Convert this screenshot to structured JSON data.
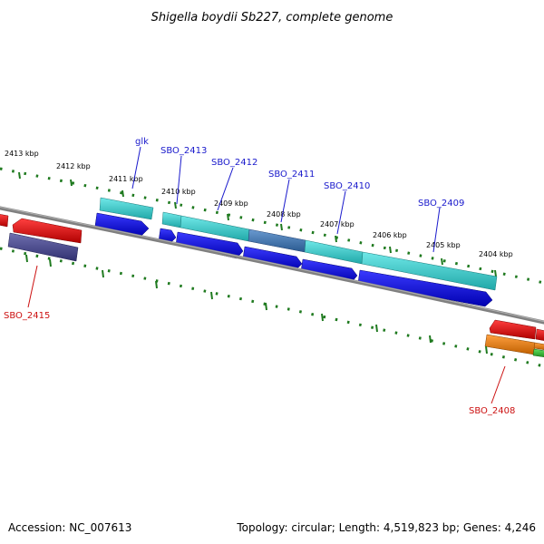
{
  "title": "Shigella boydii Sb227, complete genome",
  "footer": {
    "accession": "Accession: NC_007613",
    "summary": "Topology: circular; Length: 4,519,823 bp; Genes: 4,246"
  },
  "kbp_labels": [
    "2413 kbp",
    "2412 kbp",
    "2411 kbp",
    "2410 kbp",
    "2409 kbp",
    "2408 kbp",
    "2407 kbp",
    "2406 kbp",
    "2405 kbp",
    "2404 kbp"
  ],
  "gene_labels": [
    {
      "text": "glk",
      "color": "#1a1acc"
    },
    {
      "text": "SBO_2413",
      "color": "#1a1acc"
    },
    {
      "text": "SBO_2412",
      "color": "#1a1acc"
    },
    {
      "text": "SBO_2411",
      "color": "#1a1acc"
    },
    {
      "text": "SBO_2410",
      "color": "#1a1acc"
    },
    {
      "text": "SBO_2409",
      "color": "#1a1acc"
    },
    {
      "text": "SBO_2415",
      "color": "#cc1111"
    },
    {
      "text": "SBO_2408",
      "color": "#cc1111"
    }
  ],
  "colors": {
    "backbone": "#808080",
    "tick_green": "#1f7a1f",
    "gene_blue": "#1010e0",
    "gene_cyan": "#30c8c8",
    "gene_red": "#e01010",
    "gene_purple": "#505090",
    "gene_steel": "#4a7ab0",
    "gene_orange": "#f08010",
    "gene_green": "#30c030"
  }
}
